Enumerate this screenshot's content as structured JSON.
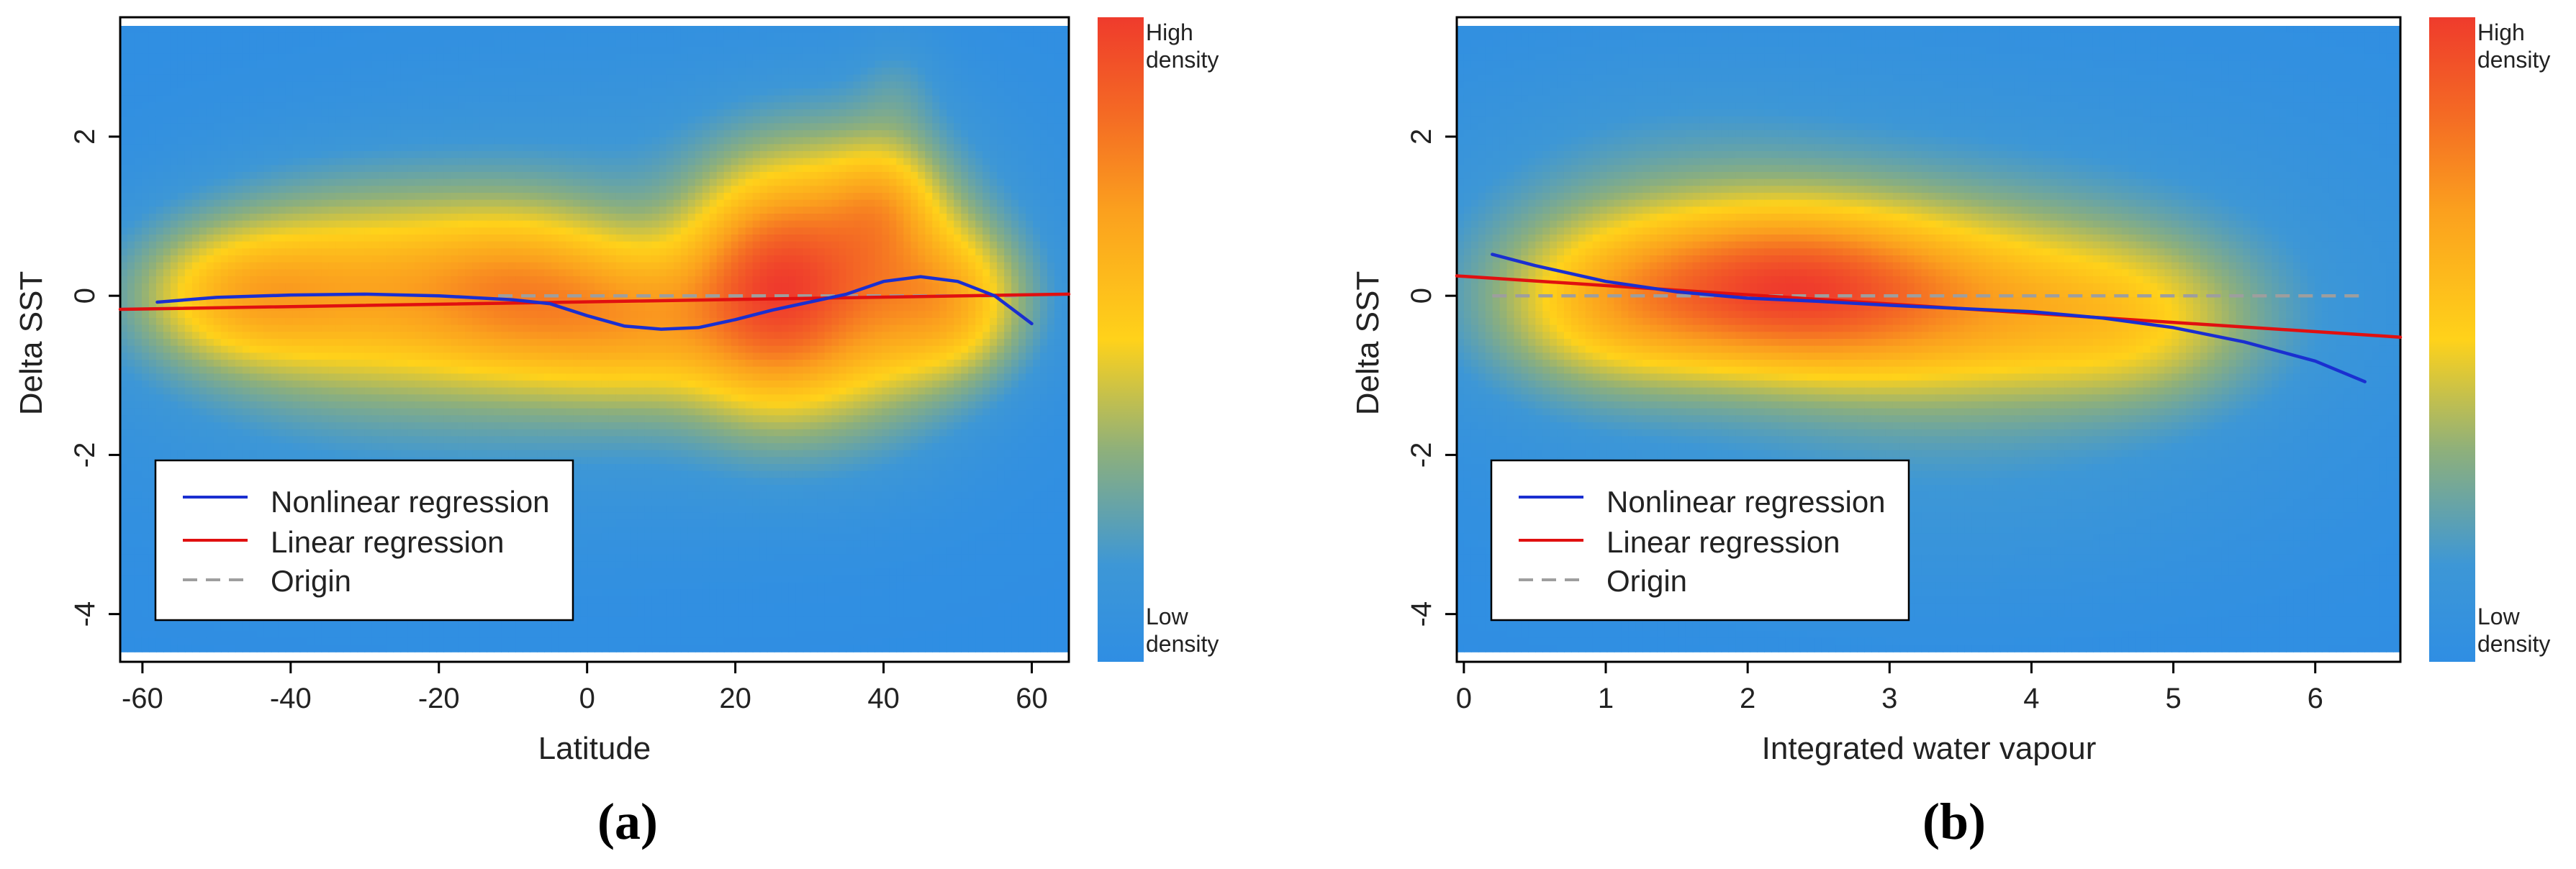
{
  "colors": {
    "density_low": "#2f8ee3",
    "density_mid": "#ffd21a",
    "density_high": "#ef3b2c",
    "nonlinear": "#1a2fd0",
    "linear": "#e01010",
    "origin": "#9e9e9e"
  },
  "chart_data": [
    {
      "type": "heatmap",
      "panel_label": "(a)",
      "xlabel": "Latitude",
      "ylabel": "Delta SST",
      "xlim": [
        -63,
        65
      ],
      "ylim": [
        -4.6,
        3.5
      ],
      "xticks": [
        -60,
        -40,
        -20,
        0,
        20,
        40,
        60
      ],
      "yticks": [
        -4,
        -2,
        0,
        2
      ],
      "colorbar": {
        "high_label": "High\ndensity",
        "low_label": "Low\ndensity"
      },
      "density_blobs": [
        {
          "x": -31,
          "y": 0.05,
          "sx": 17,
          "sy": 0.85,
          "w": 1.0
        },
        {
          "x": -8,
          "y": 0.0,
          "sx": 10,
          "sy": 0.75,
          "w": 0.8
        },
        {
          "x": -48,
          "y": 0.0,
          "sx": 9,
          "sy": 0.55,
          "w": 0.55
        },
        {
          "x": 7,
          "y": -0.35,
          "sx": 9,
          "sy": 0.7,
          "w": 0.72
        },
        {
          "x": 24,
          "y": 0.05,
          "sx": 8,
          "sy": 1.0,
          "w": 1.3
        },
        {
          "x": 37,
          "y": 0.2,
          "sx": 10,
          "sy": 1.15,
          "w": 1.05
        },
        {
          "x": 50,
          "y": -0.1,
          "sx": 7,
          "sy": 0.65,
          "w": 0.75
        },
        {
          "x": 40,
          "y": 1.2,
          "sx": 5,
          "sy": 0.5,
          "w": 0.45
        },
        {
          "x": 42,
          "y": 2.6,
          "sx": 4,
          "sy": 0.5,
          "w": 0.15
        },
        {
          "x": -10,
          "y": -1.2,
          "sx": 35,
          "sy": 1.2,
          "w": 0.22
        },
        {
          "x": 10,
          "y": 1.2,
          "sx": 35,
          "sy": 1.2,
          "w": 0.18
        }
      ],
      "series": [
        {
          "name": "Nonlinear regression",
          "style": "solid",
          "color_key": "nonlinear",
          "x": [
            -58,
            -50,
            -40,
            -30,
            -20,
            -10,
            -5,
            0,
            5,
            10,
            15,
            20,
            25,
            30,
            35,
            40,
            45,
            50,
            55,
            60
          ],
          "y": [
            -0.08,
            -0.02,
            0.01,
            0.02,
            0.0,
            -0.05,
            -0.1,
            -0.25,
            -0.38,
            -0.42,
            -0.4,
            -0.3,
            -0.18,
            -0.08,
            0.02,
            0.18,
            0.24,
            0.18,
            0.0,
            -0.35
          ]
        },
        {
          "name": "Linear regression",
          "style": "solid",
          "color_key": "linear",
          "x": [
            -63,
            65
          ],
          "y": [
            -0.17,
            0.02
          ]
        },
        {
          "name": "Origin",
          "style": "dashed",
          "color_key": "origin",
          "x": [
            -12,
            58
          ],
          "y": [
            0,
            0
          ]
        }
      ],
      "legend": [
        "Nonlinear regression",
        "Linear regression",
        "Origin"
      ]
    },
    {
      "type": "heatmap",
      "panel_label": "(b)",
      "xlabel": "Integrated water vapour",
      "ylabel": "Delta SST",
      "xlim": [
        -0.05,
        6.6
      ],
      "ylim": [
        -4.6,
        3.5
      ],
      "xticks": [
        0,
        1,
        2,
        3,
        4,
        5,
        6
      ],
      "yticks": [
        -4,
        -2,
        0,
        2
      ],
      "colorbar": {
        "high_label": "High\ndensity",
        "low_label": "Low\ndensity"
      },
      "density_blobs": [
        {
          "x": 2.2,
          "y": 0.1,
          "sx": 0.75,
          "sy": 0.7,
          "w": 1.35
        },
        {
          "x": 1.0,
          "y": -0.1,
          "sx": 0.6,
          "sy": 0.75,
          "w": 0.7
        },
        {
          "x": 3.5,
          "y": -0.15,
          "sx": 0.95,
          "sy": 0.8,
          "w": 0.85
        },
        {
          "x": 4.8,
          "y": -0.35,
          "sx": 0.6,
          "sy": 0.7,
          "w": 0.45
        },
        {
          "x": 3.0,
          "y": 0.2,
          "sx": 2.3,
          "sy": 1.6,
          "w": 0.3
        },
        {
          "x": 1.5,
          "y": 1.5,
          "sx": 1.0,
          "sy": 1.0,
          "w": 0.12
        },
        {
          "x": 3.5,
          "y": -2.5,
          "sx": 1.5,
          "sy": 1.0,
          "w": 0.1
        }
      ],
      "series": [
        {
          "name": "Nonlinear regression",
          "style": "solid",
          "color_key": "nonlinear",
          "x": [
            0.2,
            0.5,
            1.0,
            1.5,
            2.0,
            2.5,
            3.0,
            3.5,
            4.0,
            4.5,
            5.0,
            5.5,
            6.0,
            6.35
          ],
          "y": [
            0.52,
            0.38,
            0.18,
            0.05,
            -0.03,
            -0.07,
            -0.12,
            -0.16,
            -0.2,
            -0.28,
            -0.4,
            -0.58,
            -0.82,
            -1.08
          ]
        },
        {
          "name": "Linear regression",
          "style": "solid",
          "color_key": "linear",
          "x": [
            -0.05,
            6.6
          ],
          "y": [
            0.25,
            -0.52
          ]
        },
        {
          "name": "Origin",
          "style": "dashed",
          "color_key": "origin",
          "x": [
            0.2,
            6.35
          ],
          "y": [
            0,
            0
          ]
        }
      ],
      "legend": [
        "Nonlinear regression",
        "Linear regression",
        "Origin"
      ]
    }
  ]
}
